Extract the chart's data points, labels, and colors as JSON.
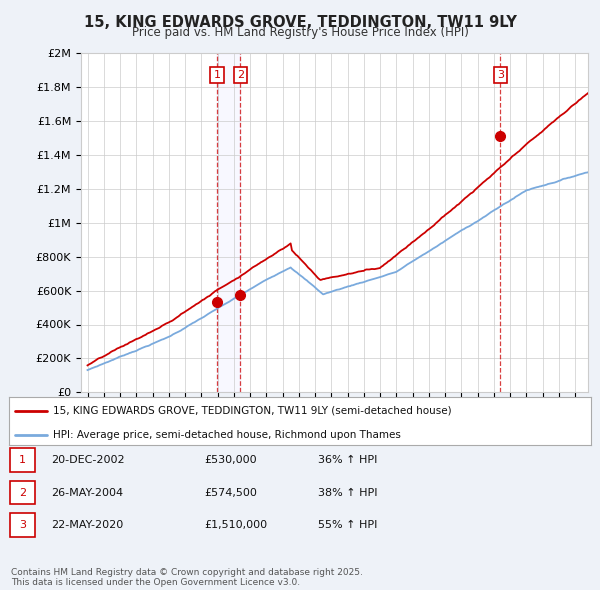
{
  "title": "15, KING EDWARDS GROVE, TEDDINGTON, TW11 9LY",
  "subtitle": "Price paid vs. HM Land Registry's House Price Index (HPI)",
  "bg_color": "#eef2f8",
  "plot_bg_color": "#ffffff",
  "grid_color": "#cccccc",
  "red_color": "#cc0000",
  "blue_color": "#7aaadd",
  "sale_dates_num": [
    2002.97,
    2004.41,
    2020.41
  ],
  "sale_prices": [
    530000,
    574500,
    1510000
  ],
  "sale_labels": [
    "1",
    "2",
    "3"
  ],
  "legend_entries": [
    "15, KING EDWARDS GROVE, TEDDINGTON, TW11 9LY (semi-detached house)",
    "HPI: Average price, semi-detached house, Richmond upon Thames"
  ],
  "table_rows": [
    [
      "1",
      "20-DEC-2002",
      "£530,000",
      "36% ↑ HPI"
    ],
    [
      "2",
      "26-MAY-2004",
      "£574,500",
      "38% ↑ HPI"
    ],
    [
      "3",
      "22-MAY-2020",
      "£1,510,000",
      "55% ↑ HPI"
    ]
  ],
  "footer": "Contains HM Land Registry data © Crown copyright and database right 2025.\nThis data is licensed under the Open Government Licence v3.0.",
  "ylim": [
    0,
    2000000
  ],
  "yticks": [
    0,
    200000,
    400000,
    600000,
    800000,
    1000000,
    1200000,
    1400000,
    1600000,
    1800000,
    2000000
  ],
  "ytick_labels": [
    "£0",
    "£200K",
    "£400K",
    "£600K",
    "£800K",
    "£1M",
    "£1.2M",
    "£1.4M",
    "£1.6M",
    "£1.8M",
    "£2M"
  ],
  "xlim": [
    1994.6,
    2025.8
  ],
  "xticks": [
    1995,
    1996,
    1997,
    1998,
    1999,
    2000,
    2001,
    2002,
    2003,
    2004,
    2005,
    2006,
    2007,
    2008,
    2009,
    2010,
    2011,
    2012,
    2013,
    2014,
    2015,
    2016,
    2017,
    2018,
    2019,
    2020,
    2021,
    2022,
    2023,
    2024,
    2025
  ]
}
